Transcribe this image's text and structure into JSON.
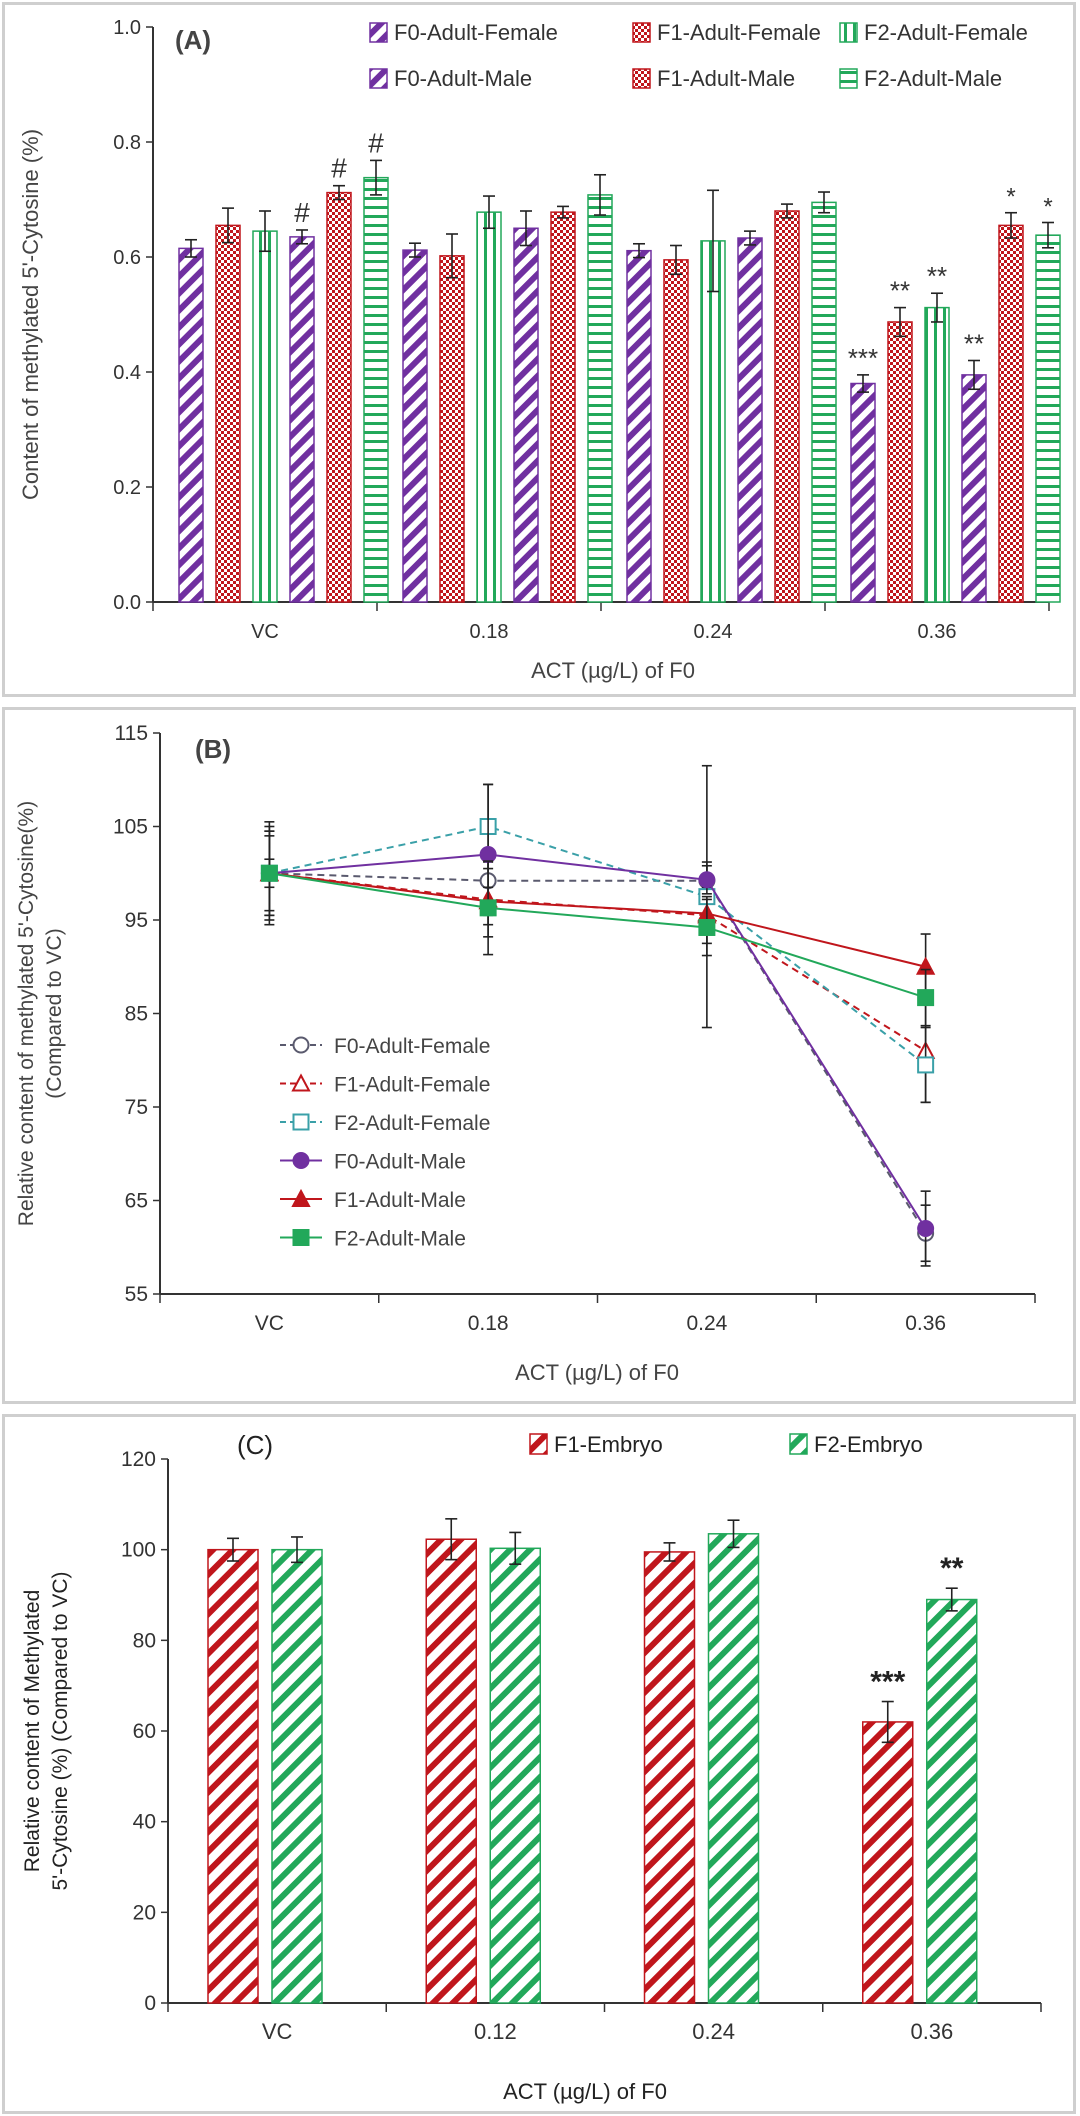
{
  "colors": {
    "purple": "#7030a0",
    "red": "#c0161c",
    "green": "#22a85a",
    "f0_female_dashed": "#5a5a6e",
    "f1_female_dashed": "#c0161c",
    "f2_female_dashed": "#3aa0a8",
    "axis": "#333333"
  },
  "chart_data": [
    {
      "panel": "A",
      "type": "bar",
      "panel_label": "(A)",
      "xlabel": "ACT (µg/L) of F0",
      "ylabel": "Content of methylated 5'-Cytosine (%)",
      "ylim": [
        0.0,
        1.0
      ],
      "yticks": [
        "0.0",
        "0.2",
        "0.4",
        "0.6",
        "0.8",
        "1.0"
      ],
      "categories": [
        "VC",
        "0.18",
        "0.24",
        "0.36"
      ],
      "legend_position": "top-right",
      "series": [
        {
          "name": "F0-Adult-Female",
          "color": "purple",
          "pattern": "diag-fill",
          "values": [
            0.615,
            0.612,
            0.611,
            0.38
          ],
          "errors": [
            0.015,
            0.012,
            0.012,
            0.015
          ],
          "marks": [
            "",
            "",
            "",
            "***"
          ]
        },
        {
          "name": "F1-Adult-Female",
          "color": "red",
          "pattern": "checker",
          "values": [
            0.655,
            0.602,
            0.595,
            0.487
          ],
          "errors": [
            0.03,
            0.038,
            0.025,
            0.025
          ],
          "marks": [
            "",
            "",
            "",
            "**"
          ]
        },
        {
          "name": "F2-Adult-Female",
          "color": "green",
          "pattern": "vstripe",
          "values": [
            0.645,
            0.678,
            0.628,
            0.512
          ],
          "errors": [
            0.035,
            0.028,
            0.088,
            0.025
          ],
          "marks": [
            "",
            "",
            "",
            "**"
          ]
        },
        {
          "name": "F0-Adult-Male",
          "color": "purple",
          "pattern": "diag-fill",
          "values": [
            0.635,
            0.65,
            0.633,
            0.395
          ],
          "errors": [
            0.012,
            0.03,
            0.012,
            0.025
          ],
          "marks": [
            "#",
            "",
            "",
            "**"
          ]
        },
        {
          "name": "F1-Adult-Male",
          "color": "red",
          "pattern": "checker",
          "values": [
            0.712,
            0.678,
            0.68,
            0.655
          ],
          "errors": [
            0.012,
            0.01,
            0.012,
            0.022
          ],
          "marks": [
            "#",
            "",
            "",
            "*"
          ]
        },
        {
          "name": "F2-Adult-Male",
          "color": "green",
          "pattern": "hstripe",
          "values": [
            0.738,
            0.708,
            0.695,
            0.638
          ],
          "errors": [
            0.03,
            0.035,
            0.018,
            0.022
          ],
          "marks": [
            "#",
            "",
            "",
            "*"
          ]
        }
      ]
    },
    {
      "panel": "B",
      "type": "line",
      "panel_label": "(B)",
      "xlabel": "ACT (µg/L) of F0",
      "ylabel_lines": [
        "Relative content of methylated 5'-Cytosine(%)",
        "(Compared to VC)"
      ],
      "ylim": [
        55,
        115
      ],
      "yticks": [
        "55",
        "65",
        "75",
        "85",
        "95",
        "105",
        "115"
      ],
      "categories": [
        "VC",
        "0.18",
        "0.24",
        "0.36"
      ],
      "legend_position": "middle-left",
      "series": [
        {
          "name": "F0-Adult-Female",
          "color": "f0_female_dashed",
          "dashed": true,
          "marker": "circle-open",
          "values": [
            100,
            99.2,
            99.2,
            61.5
          ],
          "errors": [
            5,
            3,
            2,
            3
          ]
        },
        {
          "name": "F1-Adult-Female",
          "color": "f1_female_dashed",
          "dashed": true,
          "marker": "triangle-open",
          "values": [
            100,
            97.2,
            95.5,
            81.0
          ],
          "errors": [
            4,
            4,
            3,
            5.5
          ]
        },
        {
          "name": "F2-Adult-Female",
          "color": "f2_female_dashed",
          "dashed": true,
          "marker": "square-open",
          "values": [
            100,
            105.0,
            97.5,
            79.5
          ],
          "errors": [
            4.5,
            4.5,
            14,
            4
          ]
        },
        {
          "name": "F0-Adult-Male",
          "color": "purple",
          "dashed": false,
          "marker": "circle-filled",
          "values": [
            100,
            102.0,
            99.3,
            62.0
          ],
          "errors": [
            5.5,
            7.5,
            1.5,
            4
          ]
        },
        {
          "name": "F1-Adult-Male",
          "color": "red",
          "dashed": false,
          "marker": "triangle-filled",
          "values": [
            100,
            97.0,
            95.7,
            90.0
          ],
          "errors": [
            1.5,
            1.5,
            1.8,
            3.5
          ]
        },
        {
          "name": "F2-Adult-Male",
          "color": "green",
          "dashed": false,
          "marker": "square-filled",
          "values": [
            100,
            96.3,
            94.2,
            86.7
          ],
          "errors": [
            4.5,
            5,
            3,
            3
          ]
        }
      ]
    },
    {
      "panel": "C",
      "type": "bar",
      "panel_label": "(C)",
      "xlabel": "ACT  (µg/L) of F0",
      "ylabel_lines": [
        "Relative content of  Methylated",
        "5'-Cytosine (%) (Compared to VC)"
      ],
      "ylim": [
        0,
        120
      ],
      "yticks": [
        "0",
        "20",
        "40",
        "60",
        "80",
        "100",
        "120"
      ],
      "categories": [
        "VC",
        "0.12",
        "0.24",
        "0.36"
      ],
      "legend_position": "top-right",
      "series": [
        {
          "name": "F1-Embryo",
          "color": "red",
          "pattern": "diag-wide",
          "values": [
            100,
            102.3,
            99.5,
            62.0
          ],
          "errors": [
            2.5,
            4.5,
            2.0,
            4.5
          ],
          "marks": [
            "",
            "",
            "",
            "***"
          ]
        },
        {
          "name": "F2-Embryo",
          "color": "green",
          "pattern": "diag-wide",
          "values": [
            100,
            100.3,
            103.5,
            89.0
          ],
          "errors": [
            2.8,
            3.5,
            3.0,
            2.5
          ],
          "marks": [
            "",
            "",
            "",
            "**"
          ]
        }
      ]
    }
  ]
}
